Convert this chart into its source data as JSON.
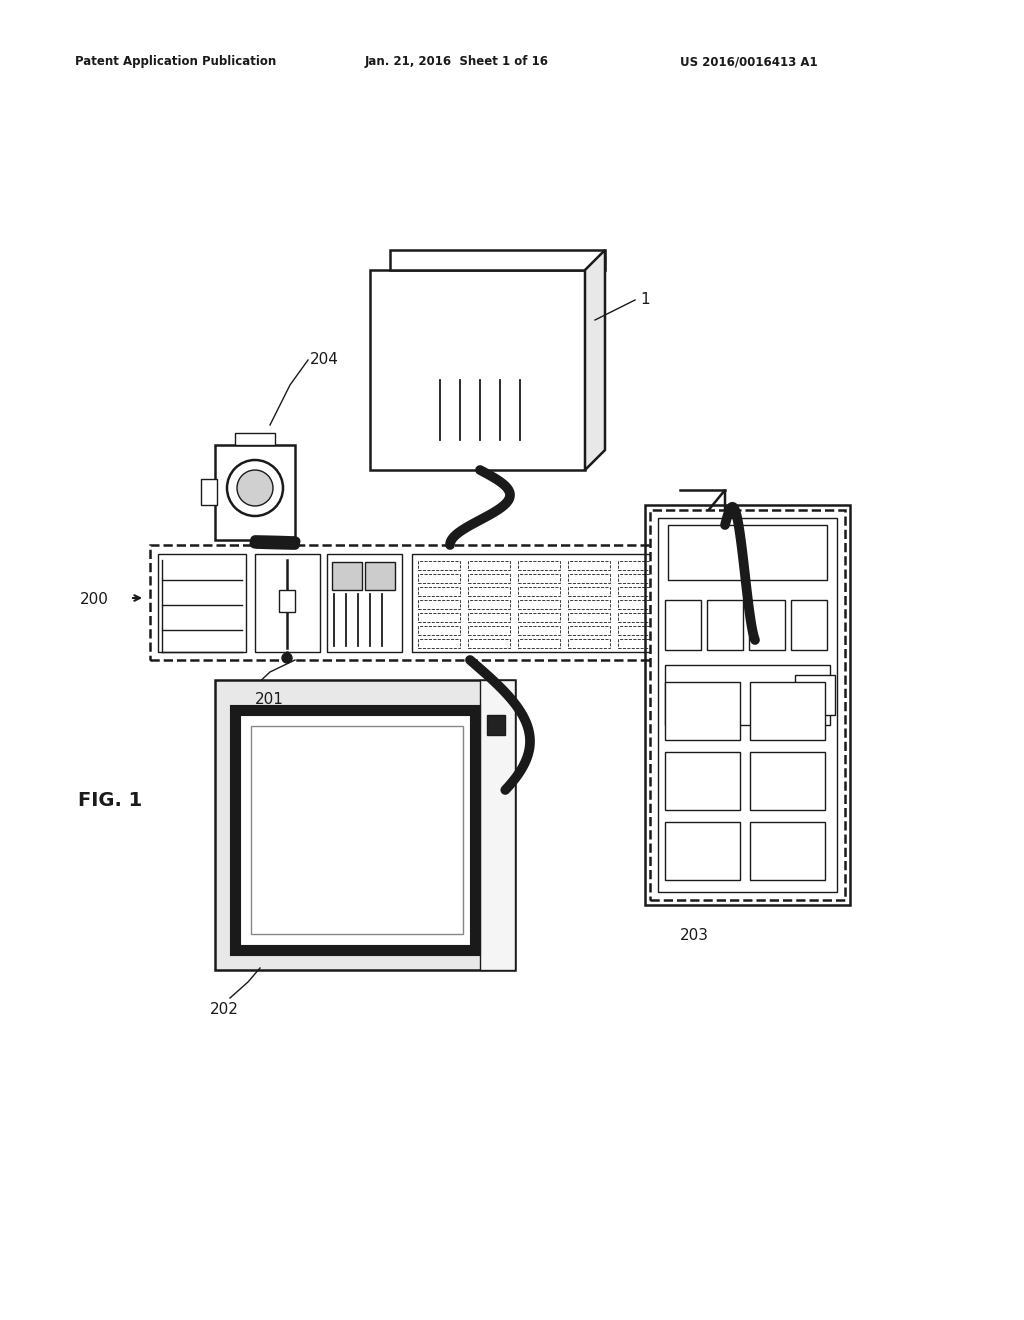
{
  "header_left": "Patent Application Publication",
  "header_mid": "Jan. 21, 2016  Sheet 1 of 16",
  "header_right": "US 2016/0016413 A1",
  "fig_label": "FIG. 1",
  "label_1": "1",
  "label_200": "200",
  "label_201": "201",
  "label_202": "202",
  "label_203": "203",
  "label_204": "204",
  "bg_color": "#ffffff",
  "line_color": "#1a1a1a"
}
